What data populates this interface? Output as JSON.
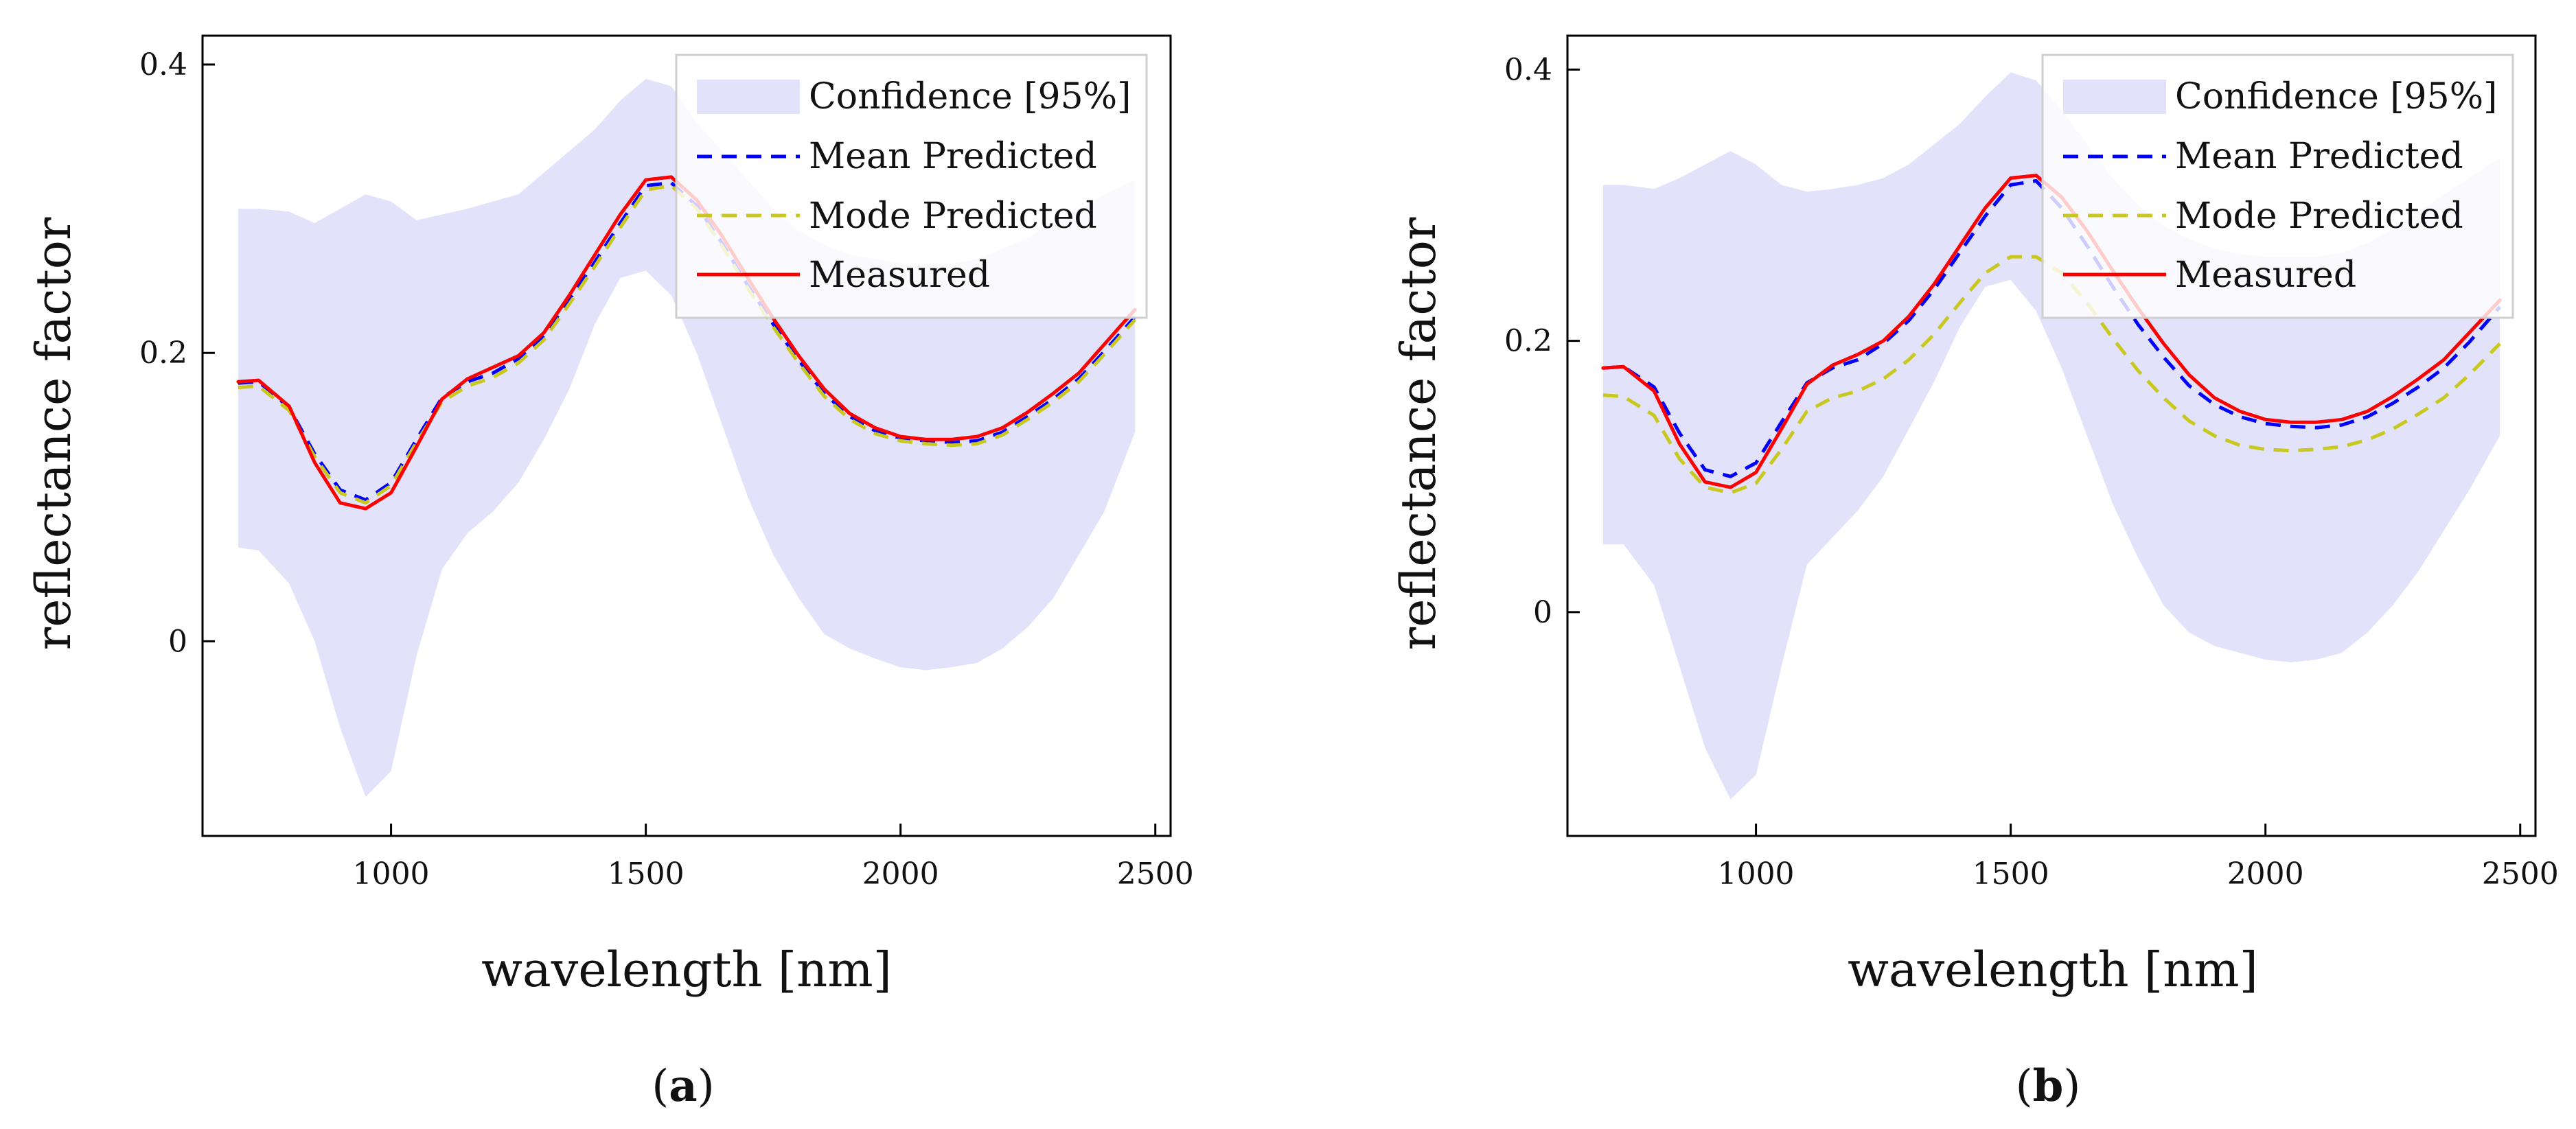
{
  "chart_data": [
    {
      "type": "line",
      "subfigure_label": "a",
      "xlabel": "wavelength [nm]",
      "ylabel": "reflectance factor",
      "xlim": [
        630,
        2530
      ],
      "ylim": [
        -0.135,
        0.42
      ],
      "xticks": [
        1000,
        1500,
        2000,
        2500
      ],
      "yticks": [
        0,
        0.2,
        0.4
      ],
      "xtick_labels": [
        "1000",
        "1500",
        "2000",
        "2500"
      ],
      "ytick_labels": [
        "0",
        "0.2",
        "0.4"
      ],
      "legend_position": "top-right",
      "grid": false,
      "band": {
        "name": "Confidence [95%]",
        "color": "#e2e2fb",
        "x": [
          700,
          740,
          800,
          850,
          900,
          950,
          1000,
          1050,
          1100,
          1150,
          1200,
          1250,
          1300,
          1350,
          1400,
          1450,
          1500,
          1550,
          1600,
          1650,
          1700,
          1750,
          1800,
          1850,
          1900,
          1950,
          2000,
          2050,
          2100,
          2150,
          2200,
          2250,
          2300,
          2350,
          2400,
          2460
        ],
        "upper": [
          0.3,
          0.3,
          0.298,
          0.29,
          0.3,
          0.31,
          0.305,
          0.292,
          0.296,
          0.3,
          0.305,
          0.31,
          0.325,
          0.34,
          0.355,
          0.375,
          0.39,
          0.385,
          0.36,
          0.34,
          0.32,
          0.3,
          0.285,
          0.275,
          0.268,
          0.265,
          0.262,
          0.262,
          0.262,
          0.265,
          0.272,
          0.28,
          0.29,
          0.3,
          0.31,
          0.32
        ],
        "lower": [
          0.065,
          0.063,
          0.04,
          0.0,
          -0.06,
          -0.108,
          -0.09,
          -0.01,
          0.05,
          0.075,
          0.09,
          0.11,
          0.14,
          0.175,
          0.22,
          0.252,
          0.257,
          0.24,
          0.2,
          0.15,
          0.1,
          0.06,
          0.03,
          0.005,
          -0.005,
          -0.012,
          -0.018,
          -0.02,
          -0.018,
          -0.015,
          -0.005,
          0.01,
          0.03,
          0.06,
          0.09,
          0.145
        ]
      },
      "series": [
        {
          "name": "Mean Predicted",
          "color": "#0000ff",
          "style": "dashed",
          "x": [
            700,
            740,
            800,
            850,
            900,
            950,
            1000,
            1050,
            1100,
            1150,
            1200,
            1250,
            1300,
            1350,
            1400,
            1450,
            1500,
            1550,
            1600,
            1650,
            1700,
            1750,
            1800,
            1850,
            1900,
            1950,
            2000,
            2050,
            2100,
            2150,
            2200,
            2250,
            2300,
            2350,
            2400,
            2460
          ],
          "y": [
            0.179,
            0.18,
            0.162,
            0.13,
            0.105,
            0.098,
            0.11,
            0.14,
            0.169,
            0.18,
            0.186,
            0.196,
            0.212,
            0.237,
            0.263,
            0.29,
            0.316,
            0.318,
            0.302,
            0.276,
            0.247,
            0.22,
            0.195,
            0.172,
            0.156,
            0.146,
            0.141,
            0.139,
            0.138,
            0.139,
            0.145,
            0.156,
            0.168,
            0.182,
            0.201,
            0.225
          ]
        },
        {
          "name": "Mode Predicted",
          "color": "#c8c81e",
          "style": "dashed",
          "x": [
            700,
            740,
            800,
            850,
            900,
            950,
            1000,
            1050,
            1100,
            1150,
            1200,
            1250,
            1300,
            1350,
            1400,
            1450,
            1500,
            1550,
            1600,
            1650,
            1700,
            1750,
            1800,
            1850,
            1900,
            1950,
            2000,
            2050,
            2100,
            2150,
            2200,
            2250,
            2300,
            2350,
            2400,
            2460
          ],
          "y": [
            0.176,
            0.177,
            0.16,
            0.128,
            0.103,
            0.096,
            0.108,
            0.138,
            0.166,
            0.177,
            0.183,
            0.193,
            0.209,
            0.234,
            0.26,
            0.287,
            0.313,
            0.316,
            0.3,
            0.274,
            0.245,
            0.218,
            0.193,
            0.17,
            0.154,
            0.144,
            0.139,
            0.137,
            0.136,
            0.137,
            0.143,
            0.154,
            0.166,
            0.18,
            0.199,
            0.223
          ]
        },
        {
          "name": "Measured",
          "color": "#ff0000",
          "style": "solid",
          "x": [
            700,
            740,
            800,
            850,
            900,
            950,
            1000,
            1050,
            1100,
            1150,
            1200,
            1250,
            1300,
            1350,
            1400,
            1450,
            1500,
            1550,
            1600,
            1650,
            1700,
            1750,
            1800,
            1850,
            1900,
            1950,
            2000,
            2050,
            2100,
            2150,
            2200,
            2250,
            2300,
            2350,
            2400,
            2460
          ],
          "y": [
            0.18,
            0.181,
            0.163,
            0.124,
            0.096,
            0.092,
            0.103,
            0.135,
            0.168,
            0.182,
            0.19,
            0.198,
            0.214,
            0.24,
            0.268,
            0.296,
            0.32,
            0.322,
            0.306,
            0.281,
            0.252,
            0.224,
            0.198,
            0.175,
            0.158,
            0.148,
            0.142,
            0.14,
            0.14,
            0.142,
            0.148,
            0.159,
            0.172,
            0.186,
            0.206,
            0.23
          ]
        }
      ]
    },
    {
      "type": "line",
      "subfigure_label": "b",
      "xlabel": "wavelength [nm]",
      "ylabel": "reflectance factor",
      "xlim": [
        630,
        2530
      ],
      "ylim": [
        -0.165,
        0.425
      ],
      "xticks": [
        1000,
        1500,
        2000,
        2500
      ],
      "yticks": [
        0,
        0.2,
        0.4
      ],
      "xtick_labels": [
        "1000",
        "1500",
        "2000",
        "2500"
      ],
      "ytick_labels": [
        "0",
        "0.2",
        "0.4"
      ],
      "legend_position": "top-right",
      "grid": false,
      "band": {
        "name": "Confidence [95%]",
        "color": "#e2e2fb",
        "x": [
          700,
          740,
          800,
          850,
          900,
          950,
          1000,
          1050,
          1100,
          1150,
          1200,
          1250,
          1300,
          1350,
          1400,
          1450,
          1500,
          1550,
          1600,
          1650,
          1700,
          1750,
          1800,
          1850,
          1900,
          1950,
          2000,
          2050,
          2100,
          2150,
          2200,
          2250,
          2300,
          2350,
          2400,
          2460
        ],
        "upper": [
          0.315,
          0.315,
          0.312,
          0.32,
          0.33,
          0.34,
          0.33,
          0.315,
          0.31,
          0.312,
          0.315,
          0.32,
          0.33,
          0.345,
          0.36,
          0.38,
          0.398,
          0.392,
          0.37,
          0.345,
          0.32,
          0.3,
          0.285,
          0.275,
          0.268,
          0.264,
          0.262,
          0.262,
          0.262,
          0.265,
          0.272,
          0.282,
          0.295,
          0.308,
          0.32,
          0.335
        ],
        "lower": [
          0.05,
          0.05,
          0.02,
          -0.04,
          -0.1,
          -0.138,
          -0.12,
          -0.04,
          0.035,
          0.055,
          0.075,
          0.1,
          0.135,
          0.17,
          0.21,
          0.24,
          0.245,
          0.222,
          0.18,
          0.13,
          0.08,
          0.04,
          0.005,
          -0.015,
          -0.025,
          -0.03,
          -0.035,
          -0.037,
          -0.035,
          -0.03,
          -0.015,
          0.005,
          0.03,
          0.06,
          0.09,
          0.13
        ]
      },
      "series": [
        {
          "name": "Mean Predicted",
          "color": "#0000ff",
          "style": "dashed",
          "x": [
            700,
            740,
            800,
            850,
            900,
            950,
            1000,
            1050,
            1100,
            1150,
            1200,
            1250,
            1300,
            1350,
            1400,
            1450,
            1500,
            1550,
            1600,
            1650,
            1700,
            1750,
            1800,
            1850,
            1900,
            1950,
            2000,
            2050,
            2100,
            2150,
            2200,
            2250,
            2300,
            2350,
            2400,
            2460
          ],
          "y": [
            0.18,
            0.181,
            0.166,
            0.132,
            0.105,
            0.1,
            0.11,
            0.14,
            0.169,
            0.18,
            0.186,
            0.198,
            0.215,
            0.238,
            0.265,
            0.292,
            0.315,
            0.318,
            0.298,
            0.27,
            0.24,
            0.212,
            0.188,
            0.167,
            0.153,
            0.144,
            0.139,
            0.137,
            0.136,
            0.138,
            0.144,
            0.154,
            0.166,
            0.18,
            0.199,
            0.225
          ]
        },
        {
          "name": "Mode Predicted",
          "color": "#c8c81e",
          "style": "dashed",
          "x": [
            700,
            740,
            800,
            850,
            900,
            950,
            1000,
            1050,
            1100,
            1150,
            1200,
            1250,
            1300,
            1350,
            1400,
            1450,
            1500,
            1550,
            1600,
            1650,
            1700,
            1750,
            1800,
            1850,
            1900,
            1950,
            2000,
            2050,
            2100,
            2150,
            2200,
            2250,
            2300,
            2350,
            2400,
            2460
          ],
          "y": [
            0.16,
            0.159,
            0.145,
            0.113,
            0.092,
            0.088,
            0.095,
            0.12,
            0.148,
            0.158,
            0.163,
            0.172,
            0.186,
            0.205,
            0.228,
            0.25,
            0.262,
            0.262,
            0.25,
            0.228,
            0.202,
            0.178,
            0.158,
            0.141,
            0.13,
            0.123,
            0.12,
            0.119,
            0.12,
            0.122,
            0.127,
            0.135,
            0.146,
            0.158,
            0.175,
            0.198
          ]
        },
        {
          "name": "Measured",
          "color": "#ff0000",
          "style": "solid",
          "x": [
            700,
            740,
            800,
            850,
            900,
            950,
            1000,
            1050,
            1100,
            1150,
            1200,
            1250,
            1300,
            1350,
            1400,
            1450,
            1500,
            1550,
            1600,
            1650,
            1700,
            1750,
            1800,
            1850,
            1900,
            1950,
            2000,
            2050,
            2100,
            2150,
            2200,
            2250,
            2300,
            2350,
            2400,
            2460
          ],
          "y": [
            0.18,
            0.181,
            0.163,
            0.124,
            0.096,
            0.092,
            0.103,
            0.135,
            0.168,
            0.182,
            0.19,
            0.2,
            0.218,
            0.242,
            0.27,
            0.298,
            0.32,
            0.322,
            0.306,
            0.281,
            0.252,
            0.224,
            0.198,
            0.175,
            0.158,
            0.148,
            0.142,
            0.14,
            0.14,
            0.142,
            0.148,
            0.159,
            0.172,
            0.186,
            0.206,
            0.23
          ]
        }
      ]
    }
  ],
  "legend": {
    "confidence": "Confidence [95%]",
    "mean": "Mean Predicted",
    "mode": "Mode Predicted",
    "measured": "Measured"
  },
  "captions": {
    "a": {
      "open": "(",
      "letter": "a",
      "close": ")"
    },
    "b": {
      "open": "(",
      "letter": "b",
      "close": ")"
    }
  }
}
